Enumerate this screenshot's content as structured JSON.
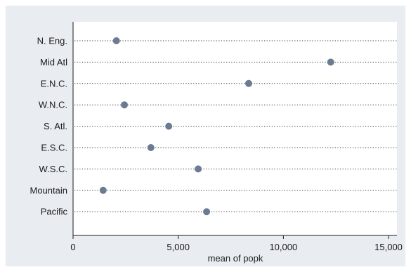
{
  "chart_data": {
    "type": "scatter",
    "orientation": "horizontal-dot",
    "categories": [
      "N. Eng.",
      "Mid Atl",
      "E.N.C.",
      "W.N.C.",
      "S. Atl.",
      "E.S.C.",
      "W.S.C.",
      "Mountain",
      "Pacific"
    ],
    "values": [
      2060,
      12250,
      8350,
      2440,
      4550,
      3700,
      5950,
      1430,
      6350
    ],
    "xlabel": "mean of popk",
    "xlim": [
      0,
      15400
    ],
    "xticks": [
      0,
      5000,
      10000,
      15000
    ],
    "xtick_labels": [
      "0",
      "5,000",
      "10,000",
      "15,000"
    ],
    "grid": "dotted horizontal lines per category",
    "colors": {
      "plot_background": "#ffffff",
      "frame_background": "#e9edf1",
      "marker": "#6b7b91",
      "guide_line": "#333333"
    }
  }
}
